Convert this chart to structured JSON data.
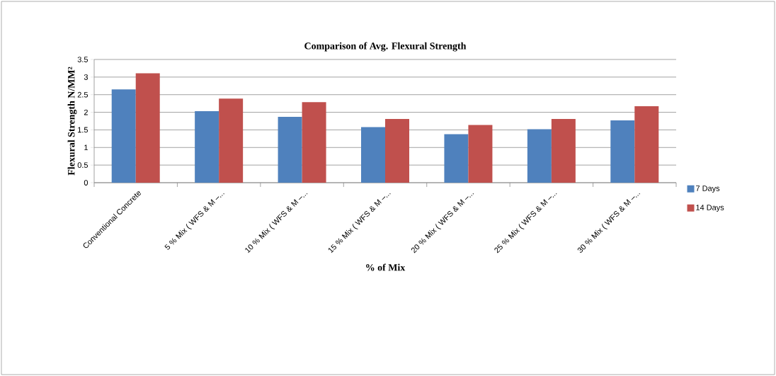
{
  "chart_data": {
    "type": "bar",
    "title": "Comparison of Avg. Flexural Strength",
    "xlabel": "% of Mix",
    "ylabel": "Flexural Strength N/MM²",
    "categories": [
      "Conventional Concrete",
      "5 % Mix ( WFS & M –...",
      "10 % Mix ( WFS & M –...",
      "15 % Mix ( WFS & M –...",
      "20 % Mix ( WFS & M –...",
      "25 % Mix ( WFS & M –...",
      "30 % Mix ( WFS & M –..."
    ],
    "series": [
      {
        "name": "7 Days",
        "color": "#4f81bd",
        "values": [
          2.65,
          2.03,
          1.87,
          1.58,
          1.38,
          1.52,
          1.77
        ]
      },
      {
        "name": "14 Days",
        "color": "#c0504d",
        "values": [
          3.11,
          2.39,
          2.29,
          1.81,
          1.64,
          1.81,
          2.17
        ]
      }
    ],
    "ylim": [
      0,
      3.5
    ],
    "yticks": [
      0,
      0.5,
      1,
      1.5,
      2,
      2.5,
      3,
      3.5
    ],
    "grid": "y",
    "legend": "right"
  }
}
